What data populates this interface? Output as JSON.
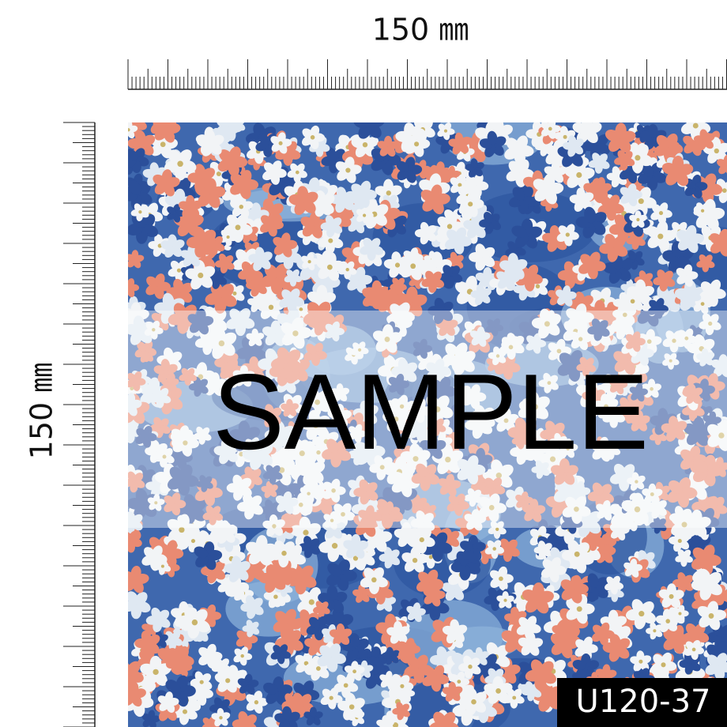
{
  "ruler_top": {
    "label": "150 ㎜"
  },
  "ruler_left": {
    "label": "150 ㎜"
  },
  "watermark": "SAMPLE",
  "product_code": "U120-37"
}
